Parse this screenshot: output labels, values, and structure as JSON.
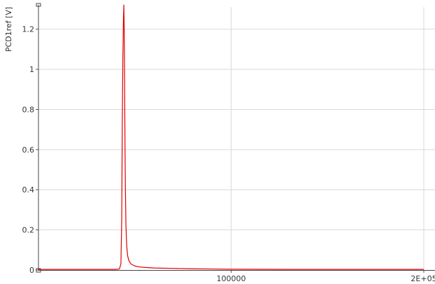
{
  "chart_data": {
    "type": "line",
    "ylabel": "PCD1ref [V]",
    "xlabel": "",
    "xlim": [
      0,
      200000
    ],
    "ylim": [
      0,
      1.3
    ],
    "grid": true,
    "x_ticks": [
      {
        "value": 100000,
        "label": "100000"
      },
      {
        "value": 200000,
        "label": "2E+05"
      }
    ],
    "y_ticks": [
      {
        "value": 0,
        "label": "0"
      },
      {
        "value": 0.2,
        "label": "0.2"
      },
      {
        "value": 0.4,
        "label": "0.4"
      },
      {
        "value": 0.6,
        "label": "0.6"
      },
      {
        "value": 0.8,
        "label": "0.8"
      },
      {
        "value": 1,
        "label": "1"
      },
      {
        "value": 1.2,
        "label": "1.2"
      }
    ],
    "series": [
      {
        "color": "#e00000",
        "x": [
          0,
          40000,
          42000,
          42800,
          43200,
          43500,
          43800,
          44100,
          44300,
          44500,
          44700,
          44900,
          45100,
          45400,
          45800,
          46300,
          47000,
          48000,
          50000,
          52000,
          55000,
          60000,
          70000,
          80000,
          90000,
          100000,
          130000,
          160000,
          200000
        ],
        "y": [
          0.003,
          0.003,
          0.005,
          0.03,
          0.25,
          0.72,
          1.05,
          1.25,
          1.32,
          1.2,
          0.95,
          0.63,
          0.42,
          0.22,
          0.12,
          0.07,
          0.045,
          0.03,
          0.02,
          0.016,
          0.013,
          0.01,
          0.008,
          0.006,
          0.005,
          0.004,
          0.003,
          0.003,
          0.003
        ]
      }
    ]
  }
}
